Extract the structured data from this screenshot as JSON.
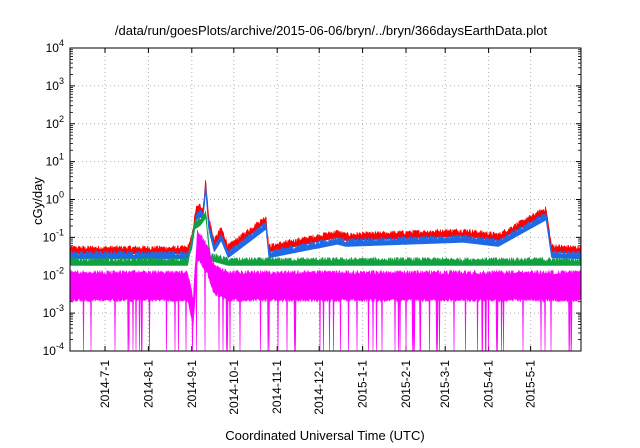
{
  "chart_data": {
    "type": "line",
    "title": "/data/run/goesPlots/archive/2015-06-06/bryn/../bryn/366daysEarthData.plot",
    "xlabel": "Coordinated Universal Time (UTC)",
    "ylabel": "cGy/day",
    "y_scale": "log",
    "ylim": [
      0.0001,
      10000
    ],
    "xlim": [
      "2014-06-06",
      "2015-06-06"
    ],
    "grid": true,
    "y_ticks": [
      {
        "value": 0.0001,
        "base": "10",
        "exp": "-4"
      },
      {
        "value": 0.001,
        "base": "10",
        "exp": "-3"
      },
      {
        "value": 0.01,
        "base": "10",
        "exp": "-2"
      },
      {
        "value": 0.1,
        "base": "10",
        "exp": "-1"
      },
      {
        "value": 1,
        "base": "10",
        "exp": "0"
      },
      {
        "value": 10,
        "base": "10",
        "exp": "1"
      },
      {
        "value": 100,
        "base": "10",
        "exp": "2"
      },
      {
        "value": 1000,
        "base": "10",
        "exp": "3"
      },
      {
        "value": 10000,
        "base": "10",
        "exp": "4"
      }
    ],
    "x_ticks": [
      {
        "date": "2014-07-01",
        "label": "2014-7-1"
      },
      {
        "date": "2014-08-01",
        "label": "2014-8-1"
      },
      {
        "date": "2014-09-01",
        "label": "2014-9-1"
      },
      {
        "date": "2014-10-01",
        "label": "2014-10-1"
      },
      {
        "date": "2014-11-01",
        "label": "2014-11-1"
      },
      {
        "date": "2014-12-01",
        "label": "2014-12-1"
      },
      {
        "date": "2015-01-01",
        "label": "2015-1-1"
      },
      {
        "date": "2015-02-01",
        "label": "2015-2-1"
      },
      {
        "date": "2015-03-01",
        "label": "2015-3-1"
      },
      {
        "date": "2015-04-01",
        "label": "2015-4-1"
      },
      {
        "date": "2015-05-01",
        "label": "2015-5-1"
      }
    ],
    "series": [
      {
        "color": "#ff0000",
        "baseline": 0.045,
        "points": [
          [
            "2014-06-06",
            0.045
          ],
          [
            "2014-08-29",
            0.045
          ],
          [
            "2014-09-01",
            0.09
          ],
          [
            "2014-09-04",
            0.5
          ],
          [
            "2014-09-07",
            0.6
          ],
          [
            "2014-09-09",
            0.5
          ],
          [
            "2014-09-11",
            3.0
          ],
          [
            "2014-09-13",
            0.3
          ],
          [
            "2014-09-17",
            0.07
          ],
          [
            "2014-09-22",
            0.15
          ],
          [
            "2014-09-27",
            0.05
          ],
          [
            "2014-10-24",
            0.3
          ],
          [
            "2014-10-26",
            0.05
          ],
          [
            "2014-12-14",
            0.12
          ],
          [
            "2014-12-20",
            0.1
          ],
          [
            "2015-03-14",
            0.13
          ],
          [
            "2015-04-08",
            0.1
          ],
          [
            "2015-05-12",
            0.5
          ],
          [
            "2015-05-16",
            0.05
          ],
          [
            "2015-06-06",
            0.045
          ]
        ]
      },
      {
        "color": "#1e6ae6",
        "baseline": 0.033,
        "points": [
          [
            "2014-06-06",
            0.033
          ],
          [
            "2014-08-29",
            0.033
          ],
          [
            "2014-09-01",
            0.06
          ],
          [
            "2014-09-04",
            0.35
          ],
          [
            "2014-09-07",
            0.42
          ],
          [
            "2014-09-09",
            0.35
          ],
          [
            "2014-09-11",
            2.0
          ],
          [
            "2014-09-13",
            0.2
          ],
          [
            "2014-09-17",
            0.05
          ],
          [
            "2014-09-22",
            0.1
          ],
          [
            "2014-09-27",
            0.035
          ],
          [
            "2014-10-24",
            0.2
          ],
          [
            "2014-10-26",
            0.035
          ],
          [
            "2014-12-14",
            0.08
          ],
          [
            "2014-12-20",
            0.07
          ],
          [
            "2015-03-14",
            0.09
          ],
          [
            "2015-04-08",
            0.07
          ],
          [
            "2015-05-12",
            0.35
          ],
          [
            "2015-05-16",
            0.035
          ],
          [
            "2015-06-06",
            0.033
          ]
        ]
      },
      {
        "color": "#10a040",
        "baseline": 0.022,
        "points": [
          [
            "2014-06-06",
            0.022
          ],
          [
            "2014-08-29",
            0.022
          ],
          [
            "2014-09-03",
            0.2
          ],
          [
            "2014-09-07",
            0.25
          ],
          [
            "2014-09-11",
            0.4
          ],
          [
            "2014-09-14",
            0.03
          ],
          [
            "2014-09-27",
            0.022
          ],
          [
            "2015-06-06",
            0.022
          ]
        ]
      },
      {
        "color": "#ff00ff",
        "baseline": 0.01,
        "points": [
          [
            "2014-06-06",
            0.01
          ],
          [
            "2014-08-29",
            0.01
          ],
          [
            "2014-09-02",
            0.002
          ],
          [
            "2014-09-05",
            0.12
          ],
          [
            "2014-09-08",
            0.09
          ],
          [
            "2014-09-12",
            0.05
          ],
          [
            "2014-09-17",
            0.015
          ],
          [
            "2014-09-27",
            0.01
          ],
          [
            "2015-06-06",
            0.01
          ]
        ]
      }
    ]
  }
}
